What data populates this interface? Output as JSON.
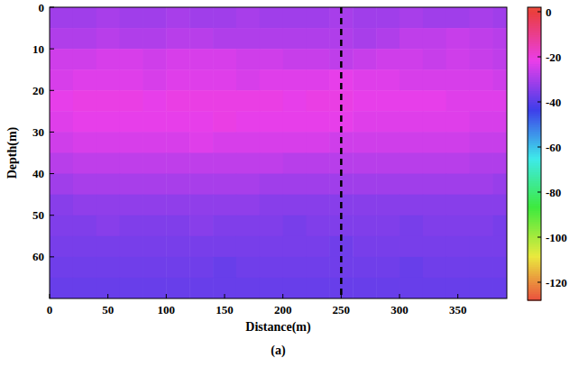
{
  "chart_data": {
    "type": "heatmap",
    "x_label": "Distance(m)",
    "y_label": "Depth(m)",
    "caption": "(a)",
    "x": [
      10,
      30,
      50,
      70,
      90,
      110,
      130,
      150,
      170,
      190,
      210,
      230,
      250,
      270,
      290,
      310,
      330,
      350,
      370,
      390
    ],
    "y": [
      2.5,
      7.5,
      12.5,
      17.5,
      22.5,
      27.5,
      32.5,
      37.5,
      42.5,
      47.5,
      52.5,
      57.5,
      62.5,
      67.5
    ],
    "values": [
      [
        -31,
        -31,
        -30,
        -31,
        -31,
        -30,
        -31,
        -31,
        -30,
        -31,
        -31,
        -31,
        -30,
        -31,
        -31,
        -30,
        -31,
        -31,
        -30,
        -31
      ],
      [
        -29,
        -29,
        -28,
        -29,
        -29,
        -28,
        -28,
        -29,
        -29,
        -29,
        -29,
        -29,
        -29,
        -30,
        -29,
        -27,
        -27,
        -26,
        -27,
        -28
      ],
      [
        -25,
        -25,
        -24,
        -24,
        -25,
        -24,
        -24,
        -24,
        -25,
        -25,
        -26,
        -26,
        -27,
        -26,
        -25,
        -25,
        -26,
        -25,
        -26,
        -27
      ],
      [
        -24,
        -23,
        -23,
        -23,
        -24,
        -23,
        -23,
        -23,
        -24,
        -23,
        -23,
        -23,
        -22,
        -23,
        -23,
        -24,
        -24,
        -24,
        -24,
        -25
      ],
      [
        -22,
        -21,
        -21,
        -21,
        -22,
        -21,
        -21,
        -21,
        -21,
        -21,
        -22,
        -21,
        -21,
        -22,
        -22,
        -22,
        -22,
        -23,
        -23,
        -23
      ],
      [
        -23,
        -22,
        -22,
        -22,
        -22,
        -22,
        -22,
        -21,
        -22,
        -22,
        -22,
        -22,
        -22,
        -23,
        -23,
        -23,
        -23,
        -23,
        -24,
        -24
      ],
      [
        -25,
        -24,
        -24,
        -24,
        -24,
        -24,
        -23,
        -24,
        -24,
        -24,
        -24,
        -24,
        -25,
        -25,
        -25,
        -25,
        -25,
        -25,
        -26,
        -26
      ],
      [
        -28,
        -27,
        -27,
        -27,
        -27,
        -27,
        -27,
        -27,
        -27,
        -27,
        -28,
        -28,
        -28,
        -28,
        -28,
        -28,
        -28,
        -28,
        -29,
        -29
      ],
      [
        -31,
        -30,
        -30,
        -30,
        -30,
        -30,
        -30,
        -30,
        -30,
        -31,
        -31,
        -31,
        -31,
        -31,
        -31,
        -31,
        -31,
        -31,
        -31,
        -32
      ],
      [
        -34,
        -33,
        -33,
        -33,
        -33,
        -33,
        -33,
        -33,
        -33,
        -34,
        -34,
        -34,
        -34,
        -34,
        -34,
        -34,
        -34,
        -34,
        -34,
        -34
      ],
      [
        -35,
        -35,
        -34,
        -35,
        -35,
        -35,
        -34,
        -35,
        -35,
        -35,
        -36,
        -35,
        -35,
        -35,
        -35,
        -36,
        -35,
        -35,
        -35,
        -36
      ],
      [
        -36,
        -36,
        -36,
        -36,
        -36,
        -36,
        -36,
        -36,
        -36,
        -36,
        -36,
        -36,
        -37,
        -36,
        -36,
        -36,
        -36,
        -36,
        -36,
        -36
      ],
      [
        -37,
        -37,
        -37,
        -37,
        -37,
        -37,
        -37,
        -38,
        -37,
        -37,
        -37,
        -37,
        -37,
        -37,
        -37,
        -38,
        -37,
        -37,
        -37,
        -37
      ],
      [
        -38,
        -38,
        -38,
        -38,
        -38,
        -38,
        -38,
        -38,
        -38,
        -38,
        -38,
        -38,
        -38,
        -38,
        -38,
        -38,
        -38,
        -38,
        -38,
        -38
      ]
    ],
    "xlim": [
      0,
      392
    ],
    "xticks": [
      0,
      50,
      100,
      150,
      200,
      250,
      300,
      350
    ],
    "ylim": [
      0,
      70
    ],
    "yticks": [
      0,
      10,
      20,
      30,
      40,
      50,
      60
    ],
    "reference_line_x": 250,
    "colorbar": {
      "range": [
        -128,
        2
      ],
      "ticks": [
        0,
        -20,
        -40,
        -60,
        -80,
        -100,
        -120
      ]
    }
  }
}
